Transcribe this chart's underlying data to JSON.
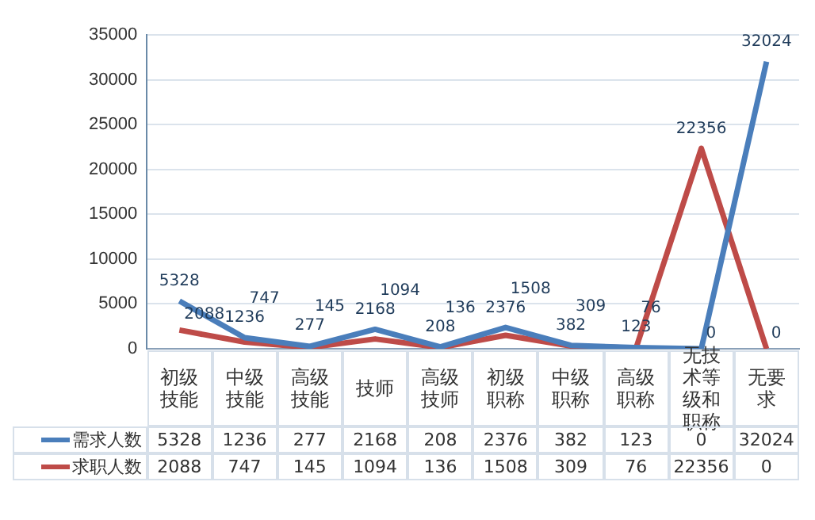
{
  "chart_data": {
    "type": "line",
    "categories": [
      "初级技能",
      "中级技能",
      "高级技能",
      "技师",
      "高级技师",
      "初级职称",
      "中级职称",
      "高级职称",
      "无技术等级和职称",
      "无要求"
    ],
    "series": [
      {
        "name": "需求人数",
        "color": "#4a7ebb",
        "values": [
          5328,
          1236,
          277,
          2168,
          208,
          2376,
          382,
          123,
          0,
          32024
        ]
      },
      {
        "name": "求职人数",
        "color": "#be4b48",
        "values": [
          2088,
          747,
          145,
          1094,
          136,
          1508,
          309,
          76,
          22356,
          0
        ]
      }
    ],
    "annotations": [
      {
        "text": "5328",
        "x": "初级技能",
        "y": 5328
      },
      {
        "text": "1236",
        "x": "中级技能",
        "y": 1236
      },
      {
        "text": "277",
        "x": "高级技能",
        "y": 277
      },
      {
        "text": "2168",
        "x": "技师",
        "y": 2168
      },
      {
        "text": "208",
        "x": "高级技师",
        "y": 208
      },
      {
        "text": "2376",
        "x": "初级职称",
        "y": 2376
      },
      {
        "text": "382",
        "x": "中级职称",
        "y": 382
      },
      {
        "text": "123",
        "x": "高级职称",
        "y": 123
      },
      {
        "text": "0",
        "x": "无技术等级和职称",
        "y": 0
      },
      {
        "text": "32024",
        "x": "无要求",
        "y": 32024
      },
      {
        "text": "2088",
        "x": "初级技能",
        "y": 2088
      },
      {
        "text": "747",
        "x": "中级技能",
        "y": 747
      },
      {
        "text": "145",
        "x": "高级技能",
        "y": 145
      },
      {
        "text": "1094",
        "x": "技师",
        "y": 1094
      },
      {
        "text": "136",
        "x": "高级技师",
        "y": 136
      },
      {
        "text": "1508",
        "x": "初级职称",
        "y": 1508
      },
      {
        "text": "309",
        "x": "中级职称",
        "y": 309
      },
      {
        "text": "76",
        "x": "高级职称",
        "y": 76
      },
      {
        "text": "22356",
        "x": "无技术等级和职称",
        "y": 22356
      },
      {
        "text": "0",
        "x": "无要求",
        "y": 0
      }
    ],
    "ylim": [
      0,
      35000
    ],
    "yticks": [
      0,
      5000,
      10000,
      15000,
      20000,
      25000,
      30000,
      35000
    ],
    "grid": "y",
    "legend": "bottom",
    "data_labels": true,
    "marker": "none",
    "line_style": "solid"
  }
}
